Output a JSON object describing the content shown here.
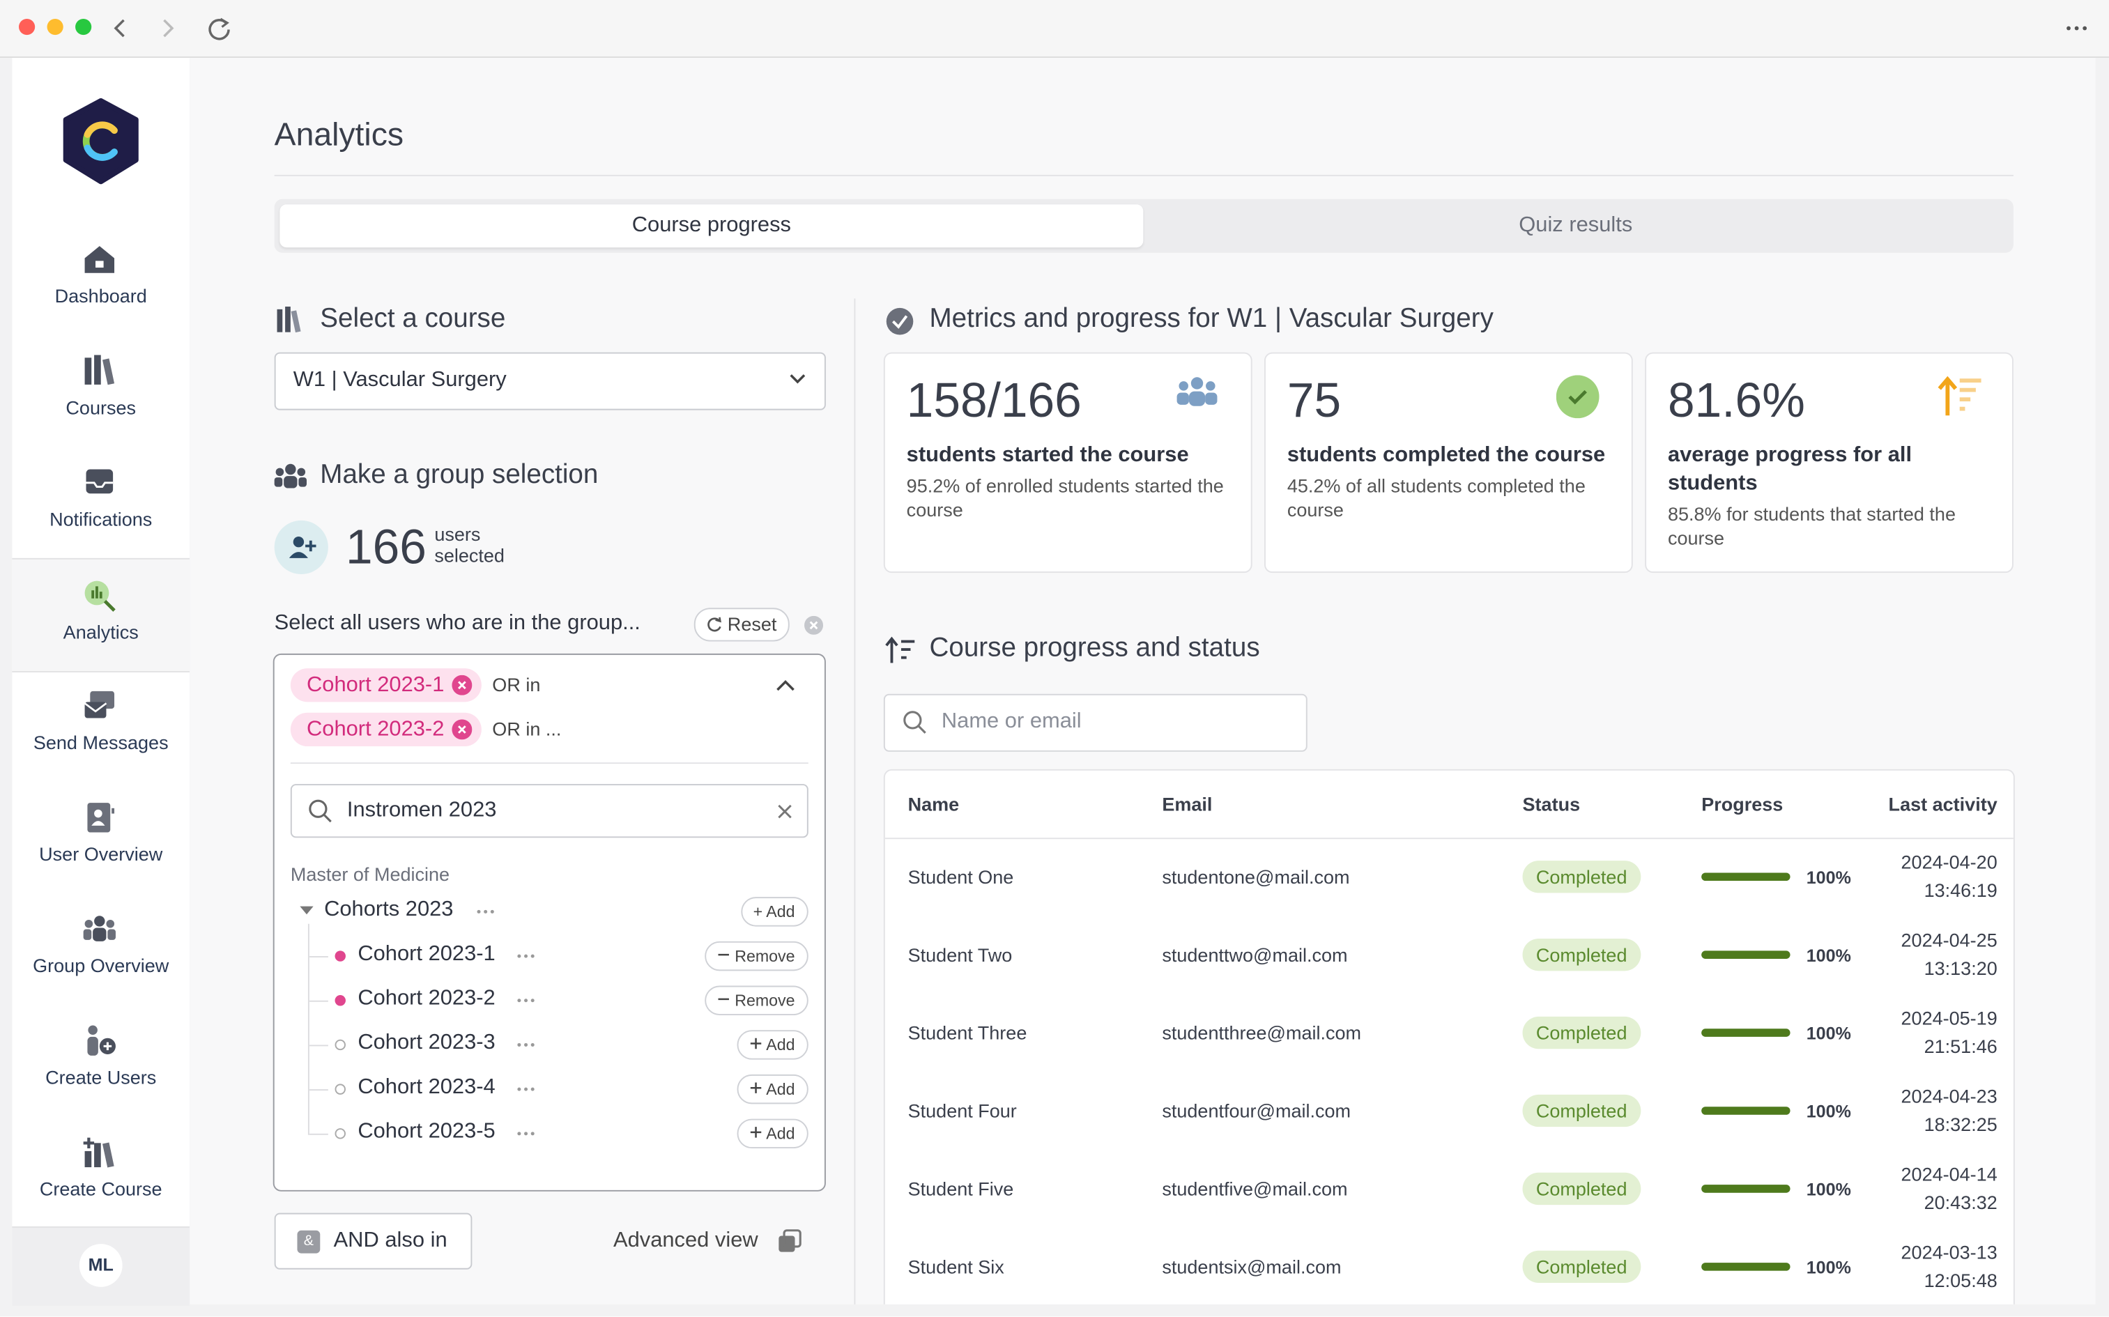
{
  "sidebar": {
    "logo": "C",
    "nav": [
      "Dashboard",
      "Courses",
      "Notifications",
      "Analytics",
      "Send Messages",
      "User Overview",
      "Group Overview",
      "Create Users",
      "Create Course"
    ],
    "active": "Analytics",
    "avatar": "ML"
  },
  "header": {
    "title": "Analytics"
  },
  "tabs": {
    "items": [
      "Course progress",
      "Quiz results"
    ],
    "active": "Course progress"
  },
  "course_select": {
    "heading": "Select a course",
    "value": "W1 | Vascular Surgery"
  },
  "group": {
    "heading": "Make a group selection",
    "count": "166",
    "count_label": "users selected",
    "prompt": "Select all users who are in the group...",
    "reset": "Reset",
    "chips": [
      {
        "label": "Cohort 2023-1",
        "join": "OR in"
      },
      {
        "label": "Cohort 2023-2",
        "join": "OR in ..."
      }
    ],
    "search": "Instromen 2023",
    "tree": {
      "root": "Master of Medicine",
      "group": "Cohorts 2023",
      "group_action": "Add",
      "items": [
        {
          "label": "Cohort 2023-1",
          "action": "Remove",
          "selected": true
        },
        {
          "label": "Cohort 2023-2",
          "action": "Remove",
          "selected": true
        },
        {
          "label": "Cohort 2023-3",
          "action": "Add",
          "selected": false
        },
        {
          "label": "Cohort 2023-4",
          "action": "Add",
          "selected": false
        },
        {
          "label": "Cohort 2023-5",
          "action": "Add",
          "selected": false
        }
      ]
    },
    "and_button": "AND also in",
    "advanced": "Advanced view"
  },
  "metrics": {
    "heading": "Metrics and progress for W1 | Vascular Surgery",
    "cards": [
      {
        "value": "158/166",
        "label": "students started the course",
        "note": "95.2% of enrolled students started the course"
      },
      {
        "value": "75",
        "label": "students completed the course",
        "note": "45.2% of all students completed the course"
      },
      {
        "value": "81.6%",
        "label": "average progress for all students",
        "note": "85.8% for students that started the course"
      }
    ]
  },
  "progress": {
    "heading": "Course progress and status",
    "search_placeholder": "Name or email",
    "columns": [
      "Name",
      "Email",
      "Status",
      "Progress",
      "Last activity"
    ],
    "rows": [
      {
        "name": "Student One",
        "email": "studentone@mail.com",
        "status": "Completed",
        "progress": 100,
        "progress_label": "100%",
        "last_activity": "2024-04-20 13:46:19"
      },
      {
        "name": "Student Two",
        "email": "studenttwo@mail.com",
        "status": "Completed",
        "progress": 100,
        "progress_label": "100%",
        "last_activity": "2024-04-25 13:13:20"
      },
      {
        "name": "Student Three",
        "email": "studentthree@mail.com",
        "status": "Completed",
        "progress": 100,
        "progress_label": "100%",
        "last_activity": "2024-05-19 21:51:46"
      },
      {
        "name": "Student Four",
        "email": "studentfour@mail.com",
        "status": "Completed",
        "progress": 100,
        "progress_label": "100%",
        "last_activity": "2024-04-23 18:32:25"
      },
      {
        "name": "Student Five",
        "email": "studentfive@mail.com",
        "status": "Completed",
        "progress": 100,
        "progress_label": "100%",
        "last_activity": "2024-04-14 20:43:32"
      },
      {
        "name": "Student Six",
        "email": "studentsix@mail.com",
        "status": "Completed",
        "progress": 100,
        "progress_label": "100%",
        "last_activity": "2024-03-13 12:05:48"
      }
    ]
  }
}
